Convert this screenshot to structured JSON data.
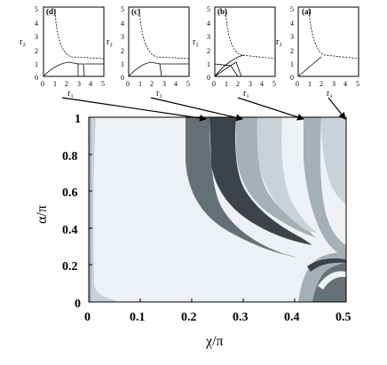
{
  "figure": {
    "insets": [
      {
        "panel_label": "(d)",
        "y_axis_label": "r₂",
        "x_axis_label": "r₁",
        "x_ticks": [
          "0",
          "1",
          "2",
          "3",
          "4",
          "5"
        ],
        "y_ticks": [
          "0",
          "1",
          "2",
          "3",
          "4",
          "5"
        ]
      },
      {
        "panel_label": "(c)",
        "y_axis_label": "r₂",
        "x_axis_label": "r₁",
        "x_ticks": [
          "0",
          "1",
          "2",
          "3",
          "4",
          "5"
        ],
        "y_ticks": [
          "0",
          "1",
          "2",
          "3",
          "4",
          "5"
        ]
      },
      {
        "panel_label": "(b)",
        "y_axis_label": "r₂",
        "x_axis_label": "r₁",
        "x_ticks": [
          "0",
          "1",
          "2",
          "3",
          "4",
          "5"
        ],
        "y_ticks": [
          "0",
          "1",
          "2",
          "3",
          "4",
          "5"
        ]
      },
      {
        "panel_label": "(a)",
        "y_axis_label": "r₂",
        "x_axis_label": "r₁",
        "x_ticks": [
          "0",
          "1",
          "2",
          "3",
          "4",
          "5"
        ],
        "y_ticks": [
          "0",
          "1",
          "2",
          "3",
          "4",
          "5"
        ]
      }
    ],
    "main": {
      "x_axis_label": "χ/π",
      "y_axis_label": "α/π",
      "x_ticks": [
        "0",
        "0.1",
        "0.2",
        "0.3",
        "0.4",
        "0.5"
      ],
      "y_ticks": [
        "0",
        "0.2",
        "0.4",
        "0.6",
        "0.8",
        "1"
      ]
    }
  },
  "colors": {
    "lightest": "#eef1f3",
    "light": "#c9d2d8",
    "mid": "#a4afb6",
    "dark": "#667177",
    "darkest": "#3c4449",
    "frame": "#000000"
  }
}
